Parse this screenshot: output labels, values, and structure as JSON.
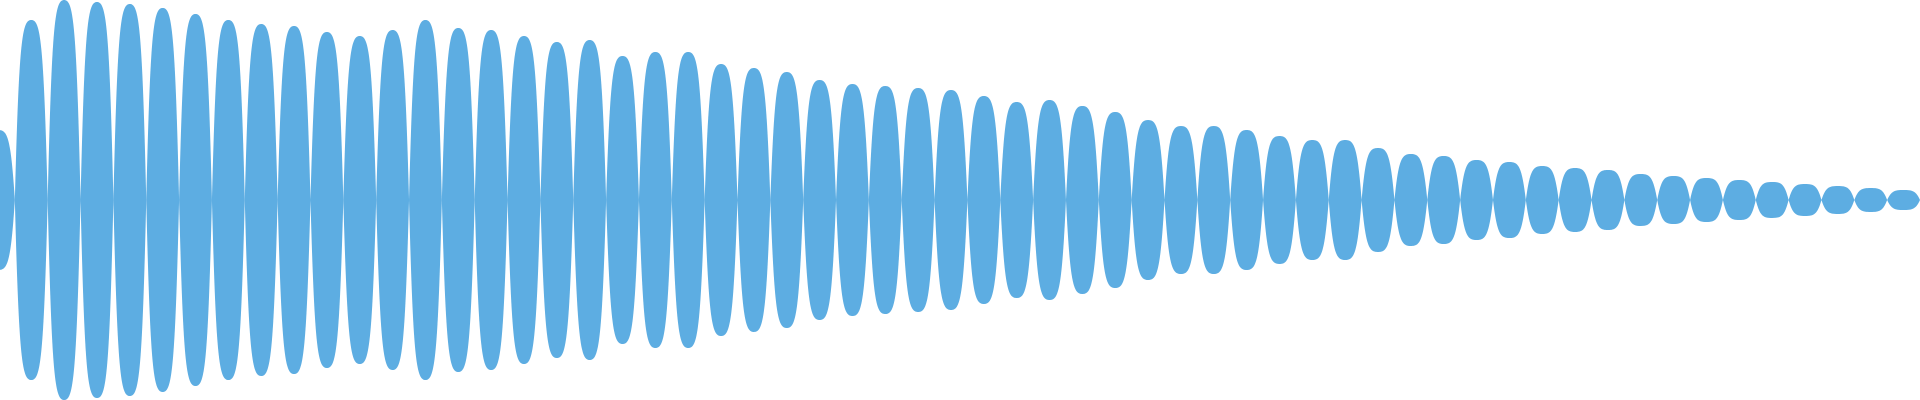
{
  "waveform": {
    "color": "#5dade2",
    "background": "#ffffff",
    "lobe_peaks": [
      0.35,
      0.9,
      1.0,
      0.99,
      0.98,
      0.96,
      0.93,
      0.9,
      0.88,
      0.87,
      0.84,
      0.82,
      0.85,
      0.9,
      0.86,
      0.85,
      0.82,
      0.79,
      0.8,
      0.72,
      0.74,
      0.74,
      0.68,
      0.66,
      0.64,
      0.6,
      0.58,
      0.57,
      0.56,
      0.55,
      0.52,
      0.49,
      0.5,
      0.47,
      0.44,
      0.4,
      0.37,
      0.37,
      0.35,
      0.32,
      0.3,
      0.3,
      0.26,
      0.23,
      0.22,
      0.2,
      0.19,
      0.17,
      0.16,
      0.15,
      0.13,
      0.12,
      0.11,
      0.1,
      0.09,
      0.08,
      0.07,
      0.06,
      0.05
    ]
  }
}
